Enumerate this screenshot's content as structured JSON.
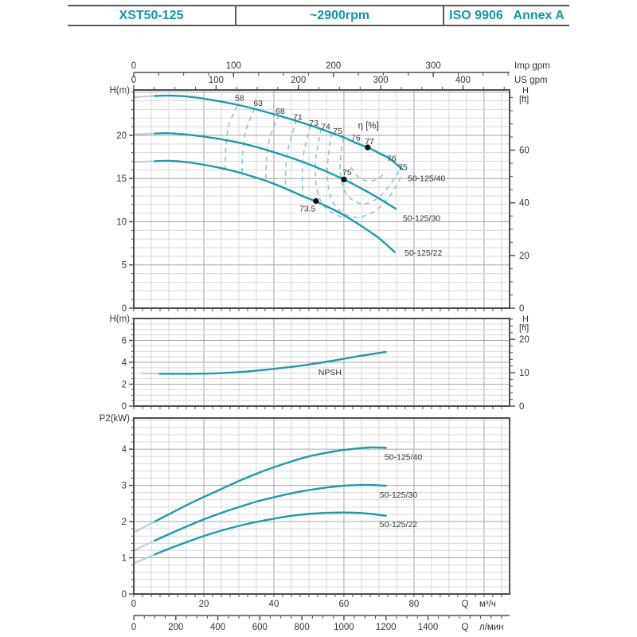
{
  "header": {
    "cells": [
      {
        "label": "XST50-125"
      },
      {
        "label": "~2900rpm"
      },
      {
        "label": "ISO 9906   Annex A"
      }
    ]
  },
  "colors": {
    "accent": "#1595a3",
    "curve": "#1d9baa",
    "contour": "#8fc6d0",
    "fade": "#bdccd2",
    "grid_minor": "#d9d9d9",
    "grid_major": "#a6a6a6",
    "border": "#4d4d4d",
    "text": "#333333",
    "marker": "#111111"
  },
  "chart_data": {
    "type": "line",
    "x": {
      "range_m3h": [
        0,
        107.3
      ],
      "m3h": {
        "labels": [
          0,
          20,
          40,
          60,
          80
        ],
        "minor_step": 2.5,
        "title_q": "Q",
        "title_unit": "м³/ч"
      },
      "lmin": {
        "labels": [
          0,
          200,
          400,
          600,
          800,
          1000,
          1200,
          1400
        ],
        "minor_step": 50,
        "m3h_per_unit": 0.06,
        "title_q": "Q",
        "title_unit": "л/мин"
      },
      "imp_gpm": {
        "labels": [
          0,
          100,
          200,
          300
        ],
        "minor_step": 25,
        "m3h_per_unit": 0.285,
        "title": "Imp gpm"
      },
      "us_gpm": {
        "labels": [
          0,
          100,
          200,
          300,
          400
        ],
        "minor_step": 25,
        "m3h_per_unit": 0.235,
        "title": "US gpm"
      }
    },
    "head_chart": {
      "ylabel": "H(m)",
      "ylabel_right": [
        "H",
        "[ft]"
      ],
      "y_range": [
        0,
        25.25
      ],
      "y_ticks": [
        0,
        5,
        10,
        15,
        20
      ],
      "y_minor": 1,
      "y_major": 5,
      "ft_ticks": [
        0,
        20,
        40,
        60
      ],
      "ft_minor": 5,
      "ft_max": 80,
      "eta_title": "η [%]",
      "eta_title_pos": [
        67,
        20.8
      ],
      "series": [
        {
          "name": "50-125/40",
          "label_pos": [
            78.2,
            14.7
          ],
          "fade_to": 6,
          "points": [
            [
              0,
              24.4
            ],
            [
              5,
              24.55
            ],
            [
              10,
              24.6
            ],
            [
              15,
              24.5
            ],
            [
              20,
              24.25
            ],
            [
              25,
              23.9
            ],
            [
              30,
              23.5
            ],
            [
              35,
              23.0
            ],
            [
              40,
              22.45
            ],
            [
              45,
              21.85
            ],
            [
              50,
              21.2
            ],
            [
              55,
              20.5
            ],
            [
              60,
              19.75
            ],
            [
              63,
              19.2
            ],
            [
              67,
              18.55
            ],
            [
              70,
              17.95
            ],
            [
              73,
              17.3
            ],
            [
              76.6,
              16.1
            ]
          ]
        },
        {
          "name": "50-125/30",
          "label_pos": [
            76.8,
            10.1
          ],
          "fade_to": 6,
          "points": [
            [
              0,
              20.1
            ],
            [
              5,
              20.2
            ],
            [
              10,
              20.25
            ],
            [
              15,
              20.1
            ],
            [
              20,
              19.85
            ],
            [
              25,
              19.55
            ],
            [
              30,
              19.15
            ],
            [
              35,
              18.65
            ],
            [
              40,
              18.05
            ],
            [
              45,
              17.4
            ],
            [
              50,
              16.65
            ],
            [
              55,
              15.8
            ],
            [
              60,
              14.9
            ],
            [
              65,
              13.85
            ],
            [
              70,
              12.7
            ],
            [
              74.8,
              11.5
            ]
          ]
        },
        {
          "name": "50-125/22",
          "label_pos": [
            77.3,
            6.1
          ],
          "fade_to": 6,
          "points": [
            [
              0,
              16.9
            ],
            [
              5,
              17.0
            ],
            [
              10,
              17.05
            ],
            [
              15,
              16.9
            ],
            [
              20,
              16.6
            ],
            [
              25,
              16.2
            ],
            [
              30,
              15.7
            ],
            [
              35,
              15.1
            ],
            [
              40,
              14.4
            ],
            [
              45,
              13.55
            ],
            [
              48,
              13.0
            ],
            [
              52,
              12.35
            ],
            [
              56,
              11.6
            ],
            [
              60,
              10.75
            ],
            [
              65,
              9.5
            ],
            [
              70,
              8.1
            ],
            [
              74.5,
              6.5
            ]
          ]
        }
      ],
      "markers": [
        {
          "q": 66.8,
          "h": 18.6,
          "label": "77",
          "label_pos": [
            67.3,
            19.0
          ]
        },
        {
          "q": 60.0,
          "h": 14.9,
          "label": "75",
          "label_pos": [
            60.9,
            15.4
          ]
        },
        {
          "q": 52.0,
          "h": 12.4,
          "label": "73.5",
          "label_pos": [
            49.6,
            11.2
          ]
        }
      ],
      "contour_labels": [
        {
          "t": "58",
          "pos": [
            30.2,
            24.0
          ]
        },
        {
          "t": "63",
          "pos": [
            35.5,
            23.4
          ]
        },
        {
          "t": "68",
          "pos": [
            41.8,
            22.5
          ]
        },
        {
          "t": "71",
          "pos": [
            46.8,
            21.8
          ]
        },
        {
          "t": "73",
          "pos": [
            51.4,
            21.1
          ]
        },
        {
          "t": "74",
          "pos": [
            54.8,
            20.7
          ]
        },
        {
          "t": "75",
          "pos": [
            58.2,
            20.2
          ]
        },
        {
          "t": "76",
          "pos": [
            63.4,
            19.4
          ]
        },
        {
          "t": "76",
          "pos": [
            73.6,
            17.0
          ]
        },
        {
          "t": "75",
          "pos": [
            76.8,
            16.0
          ]
        }
      ],
      "contours": [
        {
          "label": "58",
          "points": [
            [
              29.5,
              23.4
            ],
            [
              27.2,
              21.2
            ],
            [
              26.3,
              18.6
            ],
            [
              26.1,
              16.1
            ]
          ]
        },
        {
          "label": "63",
          "points": [
            [
              34.5,
              23.1
            ],
            [
              32.0,
              20.6
            ],
            [
              31.1,
              17.9
            ],
            [
              30.9,
              15.5
            ]
          ]
        },
        {
          "label": "68",
          "points": [
            [
              41.5,
              22.4
            ],
            [
              38.8,
              19.6
            ],
            [
              37.9,
              17.0
            ],
            [
              37.7,
              14.7
            ]
          ]
        },
        {
          "label": "71",
          "points": [
            [
              46.5,
              21.8
            ],
            [
              44.2,
              18.7
            ],
            [
              43.4,
              16.1
            ],
            [
              43.3,
              13.9
            ]
          ]
        },
        {
          "label": "73",
          "points": [
            [
              50.5,
              21.2
            ],
            [
              48.5,
              17.9
            ],
            [
              48.1,
              15.1
            ],
            [
              48.4,
              13.0
            ]
          ]
        },
        {
          "label": "74",
          "points": [
            [
              53.5,
              20.8
            ],
            [
              51.9,
              17.0
            ],
            [
              52.2,
              14.0
            ],
            [
              53.8,
              12.1
            ],
            [
              56.5,
              11.1
            ],
            [
              60.0,
              10.4
            ]
          ]
        },
        {
          "label": "75",
          "points": [
            [
              56.5,
              20.3
            ],
            [
              55.3,
              16.4
            ],
            [
              55.9,
              13.3
            ],
            [
              58.2,
              11.5
            ],
            [
              62.0,
              10.6
            ],
            [
              66.0,
              10.7
            ],
            [
              70.0,
              11.6
            ],
            [
              73.5,
              13.2
            ],
            [
              76.5,
              15.3
            ]
          ]
        },
        {
          "label": "76",
          "points": [
            [
              59.8,
              19.7
            ],
            [
              58.9,
              16.2
            ],
            [
              60.1,
              13.7
            ],
            [
              62.8,
              12.4
            ],
            [
              66.3,
              12.1
            ],
            [
              69.8,
              12.8
            ],
            [
              73.0,
              14.2
            ],
            [
              75.8,
              15.9
            ]
          ]
        },
        {
          "label": "77",
          "points": [
            [
              62.0,
              16.3
            ],
            [
              64.3,
              15.1
            ],
            [
              67.0,
              14.7
            ],
            [
              69.8,
              15.0
            ],
            [
              72.0,
              15.9
            ]
          ]
        }
      ]
    },
    "npsh_chart": {
      "ylabel": "H(m)",
      "ylabel_right": [
        "H",
        "[ft]"
      ],
      "y_range": [
        0,
        8
      ],
      "y_ticks": [
        0,
        2,
        4,
        6
      ],
      "y_minor": 0.5,
      "y_major": 2,
      "ft_ticks": [
        0,
        10,
        20
      ],
      "ft_minor": 2,
      "ft_max": 26,
      "series": [
        {
          "name": "NPSH",
          "label_pos": [
            56,
            2.85
          ],
          "label_anchor": "middle",
          "fade_to": 8,
          "points": [
            [
              2,
              3.0
            ],
            [
              8,
              2.95
            ],
            [
              16,
              2.95
            ],
            [
              24,
              3.0
            ],
            [
              32,
              3.15
            ],
            [
              40,
              3.4
            ],
            [
              48,
              3.7
            ],
            [
              56,
              4.1
            ],
            [
              64,
              4.55
            ],
            [
              72,
              4.95
            ]
          ]
        }
      ]
    },
    "power_chart": {
      "ylabel": "P2(kW)",
      "y_range": [
        0,
        4.86
      ],
      "y_ticks": [
        0,
        1,
        2,
        3,
        4
      ],
      "y_minor": 0.2,
      "y_major": 1,
      "series": [
        {
          "name": "50-125/40",
          "label_pos": [
            71.6,
            3.71
          ],
          "fade_to": 6,
          "points": [
            [
              0,
              1.7
            ],
            [
              5,
              1.95
            ],
            [
              10,
              2.2
            ],
            [
              15,
              2.45
            ],
            [
              20,
              2.68
            ],
            [
              25,
              2.9
            ],
            [
              30,
              3.12
            ],
            [
              35,
              3.32
            ],
            [
              40,
              3.5
            ],
            [
              45,
              3.66
            ],
            [
              50,
              3.8
            ],
            [
              55,
              3.9
            ],
            [
              60,
              3.98
            ],
            [
              65,
              4.03
            ],
            [
              68,
              4.05
            ],
            [
              72,
              4.04
            ]
          ]
        },
        {
          "name": "50-125/30",
          "label_pos": [
            70.2,
            2.66
          ],
          "fade_to": 6,
          "points": [
            [
              0,
              1.2
            ],
            [
              5,
              1.43
            ],
            [
              10,
              1.65
            ],
            [
              15,
              1.86
            ],
            [
              20,
              2.06
            ],
            [
              25,
              2.24
            ],
            [
              30,
              2.4
            ],
            [
              35,
              2.55
            ],
            [
              40,
              2.67
            ],
            [
              45,
              2.78
            ],
            [
              50,
              2.87
            ],
            [
              55,
              2.94
            ],
            [
              60,
              2.99
            ],
            [
              65,
              3.01
            ],
            [
              68,
              3.01
            ],
            [
              72,
              2.99
            ]
          ]
        },
        {
          "name": "50-125/22",
          "label_pos": [
            70.2,
            1.85
          ],
          "fade_to": 6,
          "points": [
            [
              0,
              0.85
            ],
            [
              5,
              1.05
            ],
            [
              10,
              1.25
            ],
            [
              15,
              1.43
            ],
            [
              20,
              1.6
            ],
            [
              25,
              1.75
            ],
            [
              30,
              1.88
            ],
            [
              35,
              1.99
            ],
            [
              40,
              2.08
            ],
            [
              45,
              2.16
            ],
            [
              50,
              2.21
            ],
            [
              55,
              2.24
            ],
            [
              60,
              2.25
            ],
            [
              64,
              2.24
            ],
            [
              68,
              2.21
            ],
            [
              72,
              2.16
            ]
          ]
        }
      ]
    }
  }
}
